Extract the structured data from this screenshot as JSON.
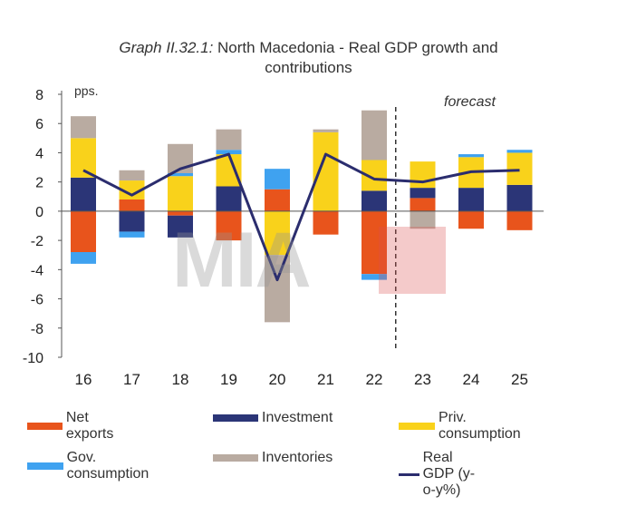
{
  "title": {
    "lead": "Graph II.32.1:",
    "rest": " North Macedonia - Real GDP growth and",
    "line2": "contributions"
  },
  "watermark": {
    "text": "MIA"
  },
  "chart_data": {
    "type": "bar",
    "stacked": true,
    "categories": [
      "16",
      "17",
      "18",
      "19",
      "20",
      "21",
      "22",
      "23",
      "24",
      "25"
    ],
    "ylim": [
      -10,
      8
    ],
    "yticks": [
      8,
      6,
      4,
      2,
      0,
      -2,
      -4,
      -6,
      -8,
      -10
    ],
    "ylabel": "pps.",
    "annotation": "forecast",
    "forecast_from_category": "23",
    "series": [
      {
        "name": "Net exports",
        "color": "#e8541c",
        "values": [
          -2.8,
          0.8,
          -0.3,
          -2.0,
          1.5,
          -1.6,
          -4.3,
          0.9,
          -1.2,
          -1.3
        ]
      },
      {
        "name": "Investment",
        "color": "#2b3577",
        "values": [
          2.3,
          -1.4,
          -1.5,
          1.7,
          0.0,
          0.0,
          1.4,
          0.7,
          1.6,
          1.8
        ]
      },
      {
        "name": "Priv. consumption",
        "color": "#f9d21b",
        "values": [
          2.7,
          1.3,
          2.4,
          2.2,
          -3.0,
          5.4,
          2.1,
          1.8,
          2.1,
          2.2
        ]
      },
      {
        "name": "Gov. consumption",
        "color": "#3fa2f0",
        "values": [
          -0.8,
          -0.4,
          0.2,
          0.3,
          1.4,
          0.0,
          -0.4,
          0.0,
          0.2,
          0.2
        ]
      },
      {
        "name": "Inventories",
        "color": "#b9aba1",
        "values": [
          1.5,
          0.7,
          2.0,
          1.4,
          -4.6,
          0.2,
          3.4,
          -1.2,
          0.0,
          0.0
        ]
      }
    ],
    "line": {
      "name": "Real GDP (y-o-y%)",
      "color": "#2b2d6e",
      "values": [
        2.8,
        1.1,
        2.9,
        3.9,
        -4.7,
        3.9,
        2.2,
        2.0,
        2.7,
        2.8
      ]
    }
  },
  "legend": [
    {
      "label": "Net exports",
      "color": "#e8541c",
      "kind": "bar"
    },
    {
      "label": "Investment",
      "color": "#2b3577",
      "kind": "bar"
    },
    {
      "label": "Priv. consumption",
      "color": "#f9d21b",
      "kind": "bar"
    },
    {
      "label": "Gov. consumption",
      "color": "#3fa2f0",
      "kind": "bar"
    },
    {
      "label": "Inventories",
      "color": "#b9aba1",
      "kind": "bar"
    },
    {
      "label": "Real GDP (y-o-y%)",
      "color": "#2b2d6e",
      "kind": "line"
    }
  ]
}
